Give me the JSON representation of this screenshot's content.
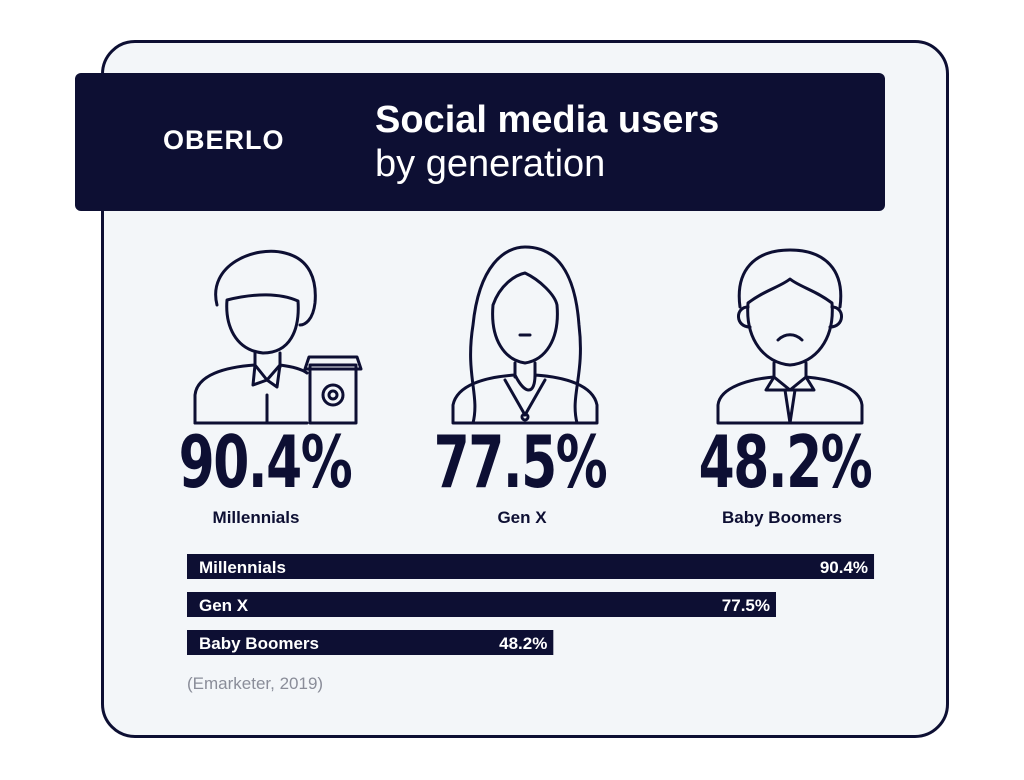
{
  "brand": "OBERLO",
  "title_line1": "Social media users",
  "title_line2": "by generation",
  "source": "(Emarketer, 2019)",
  "generations": [
    {
      "name": "Millennials",
      "percent_label": "90.4%"
    },
    {
      "name": "Gen X",
      "percent_label": "77.5%"
    },
    {
      "name": "Baby Boomers",
      "percent_label": "48.2%"
    }
  ],
  "colors": {
    "navy": "#0d0f33",
    "background": "#f3f6f9",
    "source_text": "#8a8d99",
    "white": "#ffffff"
  },
  "icons": [
    "millennial-person-with-coffee-icon",
    "gen-x-woman-icon",
    "baby-boomer-man-with-tie-icon"
  ],
  "chart_data": {
    "type": "bar",
    "orientation": "horizontal",
    "categories": [
      "Millennials",
      "Gen X",
      "Baby Boomers"
    ],
    "values": [
      90.4,
      77.5,
      48.2
    ],
    "value_labels": [
      "90.4%",
      "77.5%",
      "48.2%"
    ],
    "unit": "%",
    "xlim": [
      0,
      100
    ]
  }
}
